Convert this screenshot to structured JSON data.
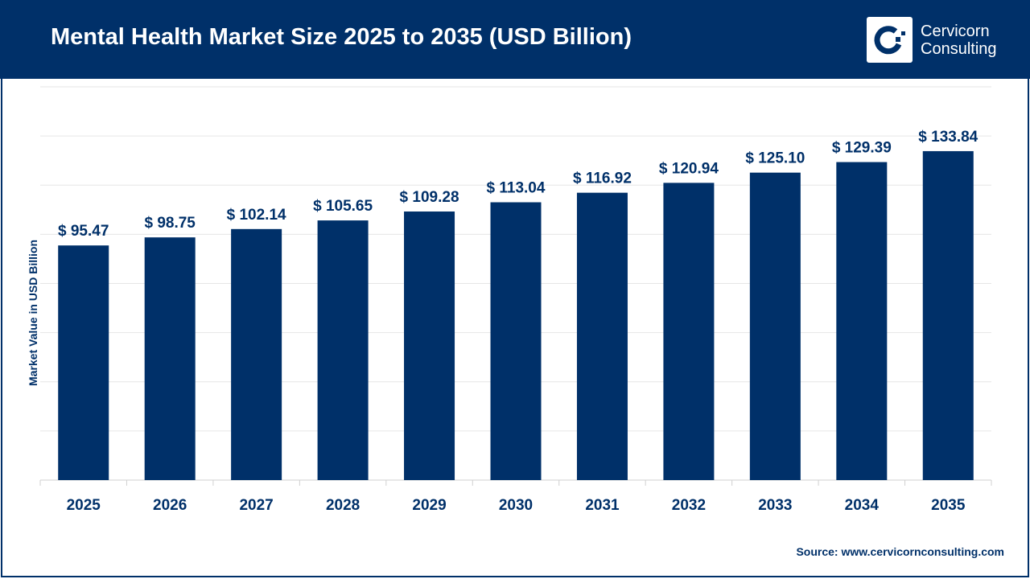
{
  "header": {
    "title": "Mental Health Market Size 2025 to 2035 (USD Billion)"
  },
  "logo": {
    "line1": "Cervicorn",
    "line2": "Consulting"
  },
  "source": "Source: www.cervicornconsulting.com",
  "colors": {
    "bar": "#003069",
    "header": "#003069",
    "grid": "#e6e6e6"
  },
  "chart_data": {
    "type": "bar",
    "title": "Mental Health Market Size 2025 to 2035 (USD Billion)",
    "xlabel": "",
    "ylabel": "Market Value in USD Billion",
    "categories": [
      "2025",
      "2026",
      "2027",
      "2028",
      "2029",
      "2030",
      "2031",
      "2032",
      "2033",
      "2034",
      "2035"
    ],
    "values": [
      95.47,
      98.75,
      102.14,
      105.65,
      109.28,
      113.04,
      116.92,
      120.94,
      125.1,
      129.39,
      133.84
    ],
    "labels": [
      "$ 95.47",
      "$ 98.75",
      "$ 102.14",
      "$ 105.65",
      "$ 109.28",
      "$ 113.04",
      "$ 116.92",
      "$ 120.94",
      "$ 125.10",
      "$ 129.39",
      "$ 133.84"
    ],
    "ylim": [
      0,
      160
    ],
    "grid_step": 20,
    "grid": true,
    "y_tick_labels_shown": false,
    "legend": "none"
  }
}
